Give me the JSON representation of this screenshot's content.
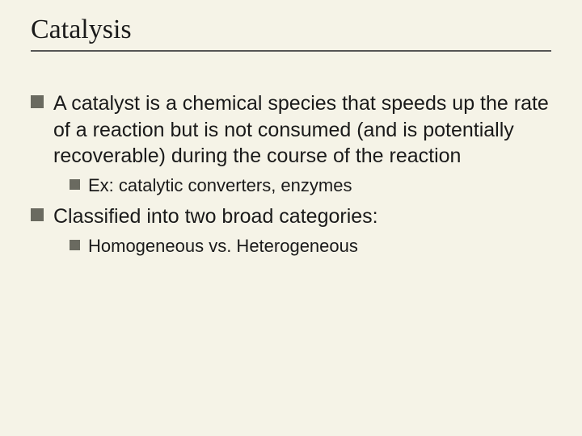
{
  "colors": {
    "background": "#f5f3e7",
    "title_text": "#1a1a1a",
    "body_text": "#1a1a1a",
    "divider": "#555555",
    "bullet": "#6a6a60"
  },
  "typography": {
    "title_font": "Times New Roman",
    "body_font": "Arial",
    "title_size_pt": 26,
    "level1_size_pt": 19,
    "level2_size_pt": 17
  },
  "slide": {
    "title": "Catalysis",
    "bullets": [
      {
        "text": "A catalyst is a chemical species that speeds up the rate of a reaction but is not consumed (and is potentially recoverable) during the course of the reaction",
        "children": [
          {
            "text": "Ex:  catalytic converters, enzymes"
          }
        ]
      },
      {
        "text": "Classified into two broad categories:",
        "children": [
          {
            "text": "Homogeneous vs. Heterogeneous"
          }
        ]
      }
    ]
  }
}
